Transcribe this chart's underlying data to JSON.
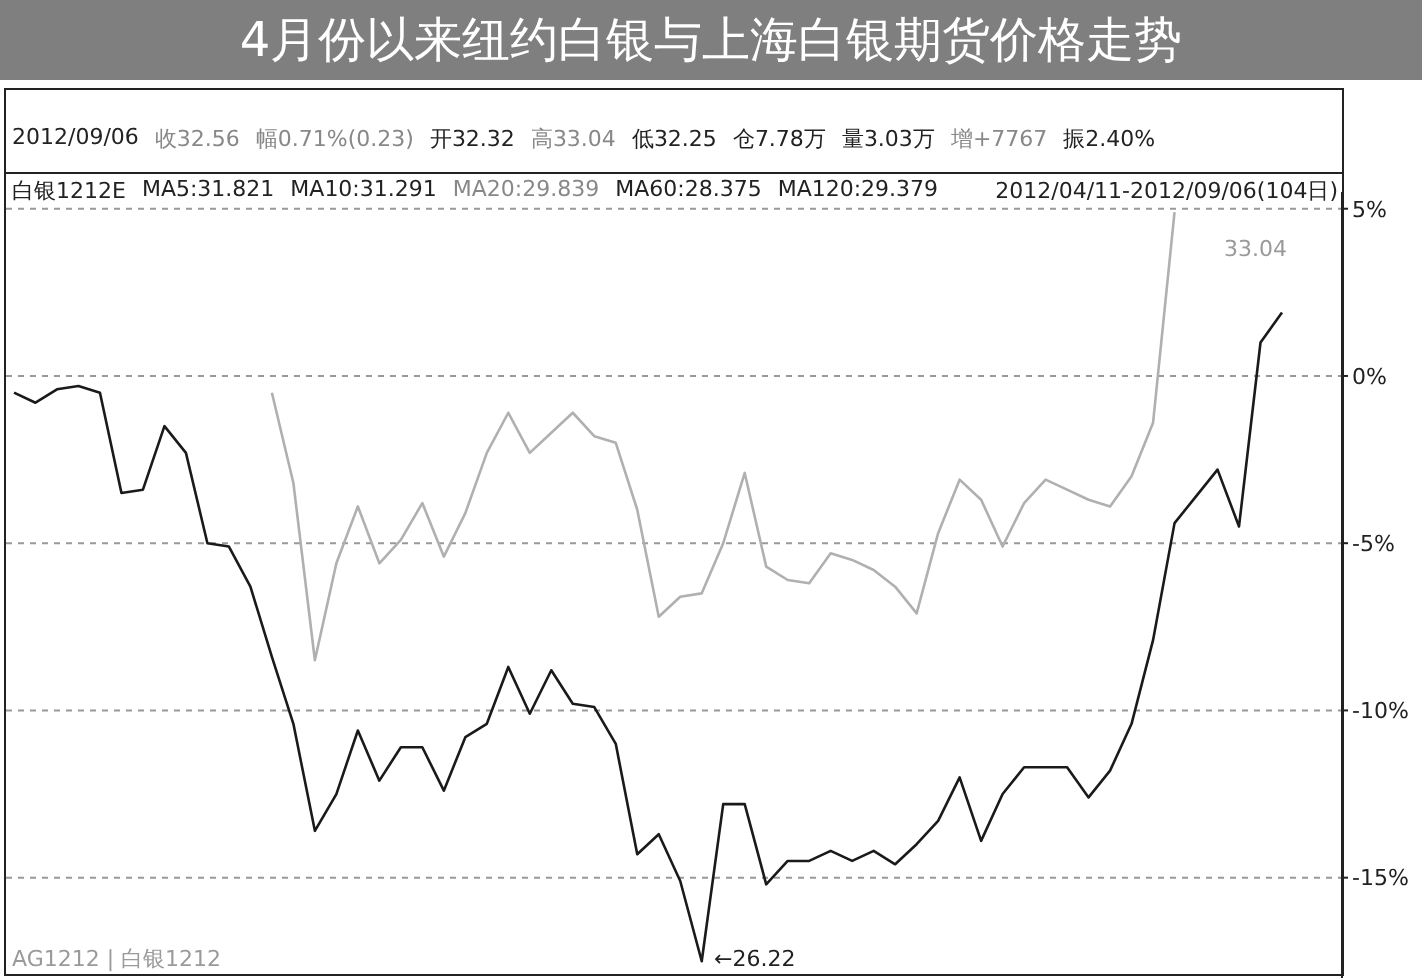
{
  "chart_data": {
    "type": "line",
    "title": "4月份以来纽约白银与上海白银期货价格走势",
    "categories": [
      null,
      null,
      null,
      null,
      null,
      null,
      null,
      null,
      null,
      null,
      null,
      null,
      null,
      null,
      null,
      null,
      null,
      null,
      null,
      null,
      null,
      null,
      null,
      null,
      null,
      null,
      null,
      null,
      null,
      null,
      null,
      null,
      null,
      null,
      null,
      null,
      null,
      null,
      null,
      null,
      null,
      null,
      null,
      null,
      null,
      null,
      null,
      null,
      null,
      null,
      null,
      null,
      null,
      null,
      null,
      null,
      null,
      null,
      null,
      null
    ],
    "series": [
      {
        "color": "#1a1a1a",
        "values": [
          -0.5,
          -0.8,
          -0.4,
          -0.3,
          -0.5,
          -3.5,
          -3.4,
          -1.5,
          -2.3,
          -5.0,
          -5.1,
          -6.3,
          -8.4,
          -10.4,
          -13.6,
          -12.5,
          -10.6,
          -12.1,
          -11.1,
          -11.1,
          -12.4,
          -10.8,
          -10.4,
          -8.7,
          -10.1,
          -8.8,
          -9.8,
          -9.9,
          -11.0,
          -14.3,
          -13.7,
          -15.1,
          -17.5,
          -12.8,
          -12.8,
          -15.2,
          -14.5,
          -14.5,
          -14.2,
          -14.5,
          -14.2,
          -14.6,
          -14.0,
          -13.3,
          -12.0,
          -13.9,
          -12.5,
          -11.7,
          -11.7,
          -11.7,
          -12.6,
          -11.8,
          -10.4,
          -7.9,
          -4.4,
          -3.6,
          -2.8,
          -4.5,
          1.0,
          1.9
        ]
      },
      {
        "color": "#b0b0b0",
        "values": [
          null,
          null,
          null,
          null,
          null,
          null,
          null,
          null,
          null,
          null,
          null,
          null,
          -0.5,
          -3.2,
          -8.5,
          -5.6,
          -3.9,
          -5.6,
          -4.9,
          -3.8,
          -5.4,
          -4.1,
          -2.3,
          -1.1,
          -2.3,
          -1.7,
          -1.1,
          -1.8,
          -2.0,
          -4.0,
          -7.2,
          -6.6,
          -6.5,
          -5.0,
          -2.9,
          -5.7,
          -6.1,
          -6.2,
          -5.3,
          -5.5,
          -5.8,
          -6.3,
          -7.1,
          -4.7,
          -3.1,
          -3.7,
          -5.1,
          -3.8,
          -3.1,
          -3.4,
          -3.7,
          -3.9,
          -3.0,
          -1.4,
          4.9,
          null,
          null,
          null,
          null,
          null
        ]
      }
    ],
    "ylim": [
      -18,
      5.5
    ],
    "yticks": [
      {
        "value": 5,
        "label": "5%"
      },
      {
        "value": 0,
        "label": "0%"
      },
      {
        "value": -5,
        "label": "-5%"
      },
      {
        "value": -10,
        "label": "-10%"
      },
      {
        "value": -15,
        "label": "-15%"
      }
    ],
    "grid": "y",
    "tick_labels": "y",
    "marker": "none",
    "line_style": "solid",
    "annotations": [
      "2012/09/06",
      "收32.56",
      "幅0.71%(0.23)",
      "开32.32",
      "高33.04",
      "低32.25",
      "仓7.78万",
      "量3.03万",
      "增+7767",
      "振2.40%",
      "白银1212E",
      "MA5:31.821",
      "MA10:31.291",
      "MA20:29.839",
      "MA60:28.375",
      "MA120:29.379",
      "2012/04/11-2012/09/06(104日)",
      "33.04",
      "←26.22",
      "AG1212 | 白银1212"
    ]
  }
}
